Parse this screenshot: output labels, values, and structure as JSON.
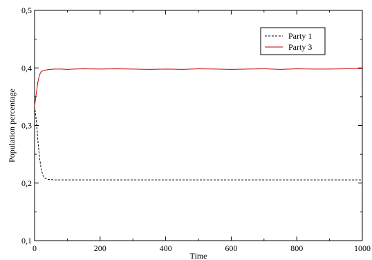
{
  "chart_data": {
    "type": "line",
    "title": "",
    "xlabel": "Time",
    "ylabel": "Population percentage",
    "xlim": [
      0,
      1000
    ],
    "ylim": [
      0.1,
      0.5
    ],
    "x_ticks": [
      0,
      200,
      400,
      600,
      800,
      1000
    ],
    "y_ticks": [
      0.1,
      0.2,
      0.3,
      0.4,
      0.5
    ],
    "x_tick_labels": [
      "0",
      "200",
      "400",
      "600",
      "800",
      "1000"
    ],
    "y_tick_labels": [
      "0,1",
      "0,2",
      "0,3",
      "0,4",
      "0,5"
    ],
    "grid": false,
    "legend_position": "top-right",
    "series": [
      {
        "name": "Party 1",
        "color": "#000000",
        "style": "dashed",
        "x": [
          0,
          5,
          10,
          15,
          20,
          25,
          30,
          40,
          50,
          60,
          80,
          100,
          150,
          200,
          300,
          400,
          500,
          600,
          700,
          800,
          900,
          1000
        ],
        "y": [
          0.333,
          0.31,
          0.275,
          0.245,
          0.225,
          0.214,
          0.209,
          0.2065,
          0.206,
          0.2055,
          0.2055,
          0.2055,
          0.2055,
          0.2055,
          0.2055,
          0.2055,
          0.2055,
          0.2055,
          0.2055,
          0.2055,
          0.2055,
          0.2055
        ]
      },
      {
        "name": "Party 3",
        "color": "#cc0000",
        "style": "solid",
        "x": [
          0,
          5,
          10,
          15,
          20,
          25,
          30,
          40,
          50,
          60,
          70,
          80,
          100,
          120,
          150,
          200,
          250,
          300,
          350,
          400,
          450,
          500,
          550,
          600,
          650,
          700,
          750,
          800,
          850,
          900,
          950,
          1000
        ],
        "y": [
          0.333,
          0.355,
          0.375,
          0.388,
          0.393,
          0.395,
          0.396,
          0.397,
          0.3975,
          0.398,
          0.398,
          0.398,
          0.3975,
          0.398,
          0.3985,
          0.398,
          0.3985,
          0.398,
          0.3975,
          0.398,
          0.3975,
          0.3985,
          0.398,
          0.3975,
          0.398,
          0.3985,
          0.3975,
          0.3985,
          0.398,
          0.398,
          0.3985,
          0.399
        ]
      }
    ]
  }
}
